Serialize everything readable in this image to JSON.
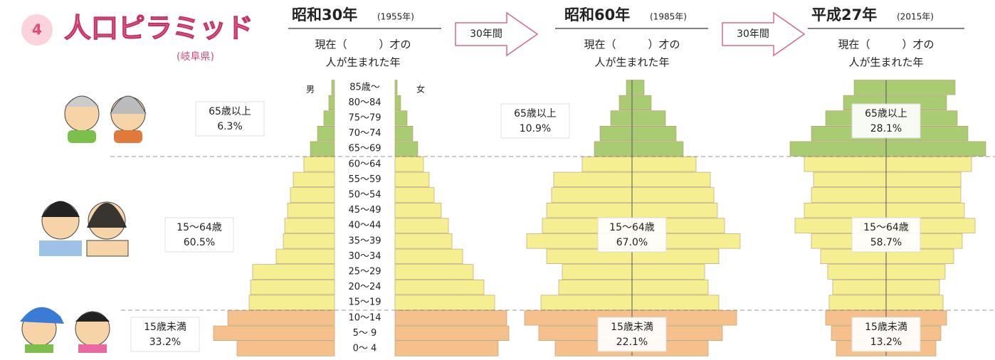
{
  "header": {
    "number": "4",
    "title": "人口ピラミッド",
    "region": "(岐阜県)"
  },
  "arrows": [
    "30年間",
    "30年間"
  ],
  "chart_data": [
    {
      "type": "pyramid",
      "title": "昭和30年",
      "subtitle": "(1955年)",
      "question": [
        "現在（　　　）才の",
        "人が生まれた年"
      ],
      "categories": [
        "0～ 4",
        "5～ 9",
        "10～14",
        "15～19",
        "20～24",
        "25～29",
        "30～34",
        "35～39",
        "40～44",
        "45～49",
        "50～54",
        "55～59",
        "60～64",
        "65～69",
        "70～74",
        "75～79",
        "80～84",
        "85歳～"
      ],
      "series": [
        {
          "name": "男",
          "values": [
            137,
            170,
            150,
            120,
            118,
            115,
            82,
            72,
            70,
            66,
            62,
            58,
            43,
            34,
            24,
            15,
            8,
            4
          ]
        },
        {
          "name": "女",
          "values": [
            145,
            160,
            157,
            140,
            125,
            110,
            95,
            80,
            75,
            65,
            55,
            48,
            40,
            32,
            25,
            17,
            8,
            3
          ]
        }
      ],
      "colors": [
        "#f5c08c",
        "#f5c08c",
        "#f5c08c",
        "#f6ef92",
        "#f6ef92",
        "#f6ef92",
        "#f6ef92",
        "#f6ef92",
        "#f6ef92",
        "#f6ef92",
        "#f6ef92",
        "#f6ef92",
        "#f6ef92",
        "#a9cc72",
        "#a9cc72",
        "#a9cc72",
        "#a9cc72",
        "#a9cc72"
      ],
      "age_groups": [
        {
          "name": "15歳未満",
          "value": 33.2,
          "value_label": "33.2%"
        },
        {
          "name": "15～64歳",
          "value": 60.5,
          "value_label": "60.5%"
        },
        {
          "name": "65歳以上",
          "value": 6.3,
          "value_label": "6.3%"
        }
      ]
    },
    {
      "type": "pyramid",
      "title": "昭和60年",
      "subtitle": "(1985年)",
      "question": [
        "現在（　　　）才の",
        "人が生まれた年"
      ],
      "series": [
        {
          "values": [
            108,
            131,
            151,
            128,
            103,
            98,
            120,
            148,
            126,
            120,
            113,
            110,
            70,
            53,
            45,
            30,
            18,
            8
          ]
        },
        {
          "values": [
            107,
            127,
            147,
            122,
            107,
            102,
            122,
            152,
            130,
            120,
            115,
            110,
            90,
            72,
            62,
            47,
            27,
            17
          ]
        }
      ],
      "colors": [
        "#f5c08c",
        "#f5c08c",
        "#f5c08c",
        "#f6ef92",
        "#f6ef92",
        "#f6ef92",
        "#f6ef92",
        "#f6ef92",
        "#f6ef92",
        "#f6ef92",
        "#f6ef92",
        "#f6ef92",
        "#f6ef92",
        "#a9cc72",
        "#a9cc72",
        "#a9cc72",
        "#a9cc72",
        "#a9cc72"
      ],
      "age_groups": [
        {
          "name": "15歳未満",
          "value": 22.1,
          "value_label": "22.1%"
        },
        {
          "name": "15～64歳",
          "value": 67.0,
          "value_label": "67.0%"
        },
        {
          "name": "65歳以上",
          "value": 10.9,
          "value_label": "10.9%"
        }
      ]
    },
    {
      "type": "pyramid",
      "title": "平成27年",
      "subtitle": "(2015年)",
      "question": [
        "現在（　　　）才の",
        "人が生まれた年"
      ],
      "series": [
        {
          "values": [
            70,
            77,
            85,
            80,
            75,
            82,
            92,
            105,
            128,
            115,
            105,
            102,
            115,
            135,
            105,
            85,
            60,
            45
          ]
        },
        {
          "values": [
            70,
            77,
            85,
            80,
            75,
            83,
            95,
            107,
            125,
            110,
            105,
            105,
            120,
            140,
            115,
            100,
            85,
            97
          ]
        }
      ],
      "colors": [
        "#f5c08c",
        "#f5c08c",
        "#f5c08c",
        "#f6ef92",
        "#f6ef92",
        "#f6ef92",
        "#f6ef92",
        "#f6ef92",
        "#f6ef92",
        "#f6ef92",
        "#f6ef92",
        "#f6ef92",
        "#f6ef92",
        "#a9cc72",
        "#a9cc72",
        "#a9cc72",
        "#a9cc72",
        "#a9cc72"
      ],
      "age_groups": [
        {
          "name": "15歳未満",
          "value": 13.2,
          "value_label": "13.2%"
        },
        {
          "name": "15～64歳",
          "value": 58.7,
          "value_label": "58.7%"
        },
        {
          "name": "65歳以上",
          "value": 28.1,
          "value_label": "28.1%"
        }
      ]
    }
  ]
}
